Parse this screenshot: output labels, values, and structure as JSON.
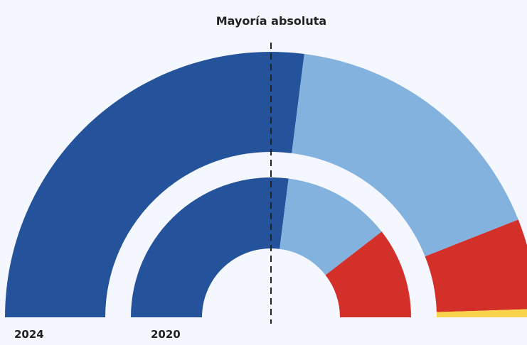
{
  "chart_data": {
    "type": "parliament",
    "annotation": "Mayoría absoluta",
    "majority_fraction": 0.5,
    "colors": {
      "blue_dark": "#24539b",
      "blue_light": "#84b2df",
      "red": "#d3302a",
      "yellow": "#f8d34c"
    },
    "rings": [
      {
        "label": "2024",
        "series": [
          {
            "color_key": "blue_dark",
            "fraction": 0.54
          },
          {
            "color_key": "blue_light",
            "fraction": 0.34
          },
          {
            "color_key": "red",
            "fraction": 0.11
          },
          {
            "color_key": "yellow",
            "fraction": 0.01
          }
        ]
      },
      {
        "label": "2020",
        "series": [
          {
            "color_key": "blue_dark",
            "fraction": 0.54
          },
          {
            "color_key": "blue_light",
            "fraction": 0.25
          },
          {
            "color_key": "red",
            "fraction": 0.21
          }
        ]
      }
    ]
  }
}
